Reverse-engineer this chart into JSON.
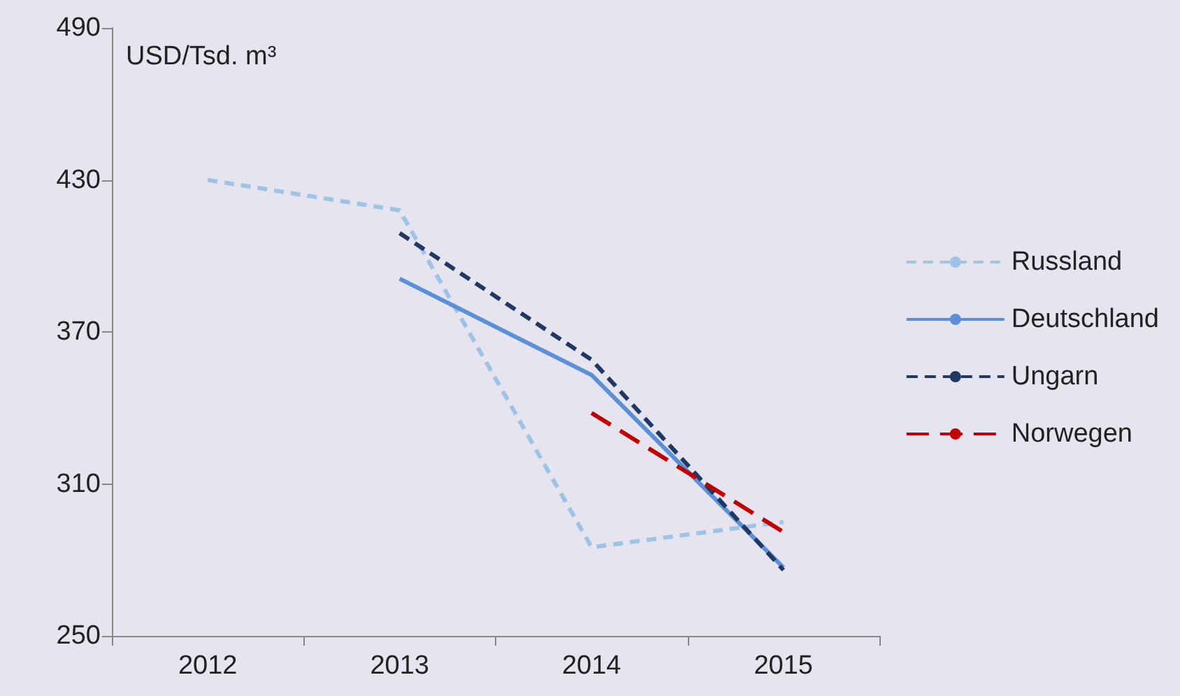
{
  "chart_data": {
    "type": "line",
    "ylabel": "USD/Tsd. m³",
    "categories": [
      "2012",
      "2013",
      "2014",
      "2015"
    ],
    "ylim": [
      250,
      490
    ],
    "yticks": [
      250,
      310,
      370,
      430,
      490
    ],
    "grid": false,
    "legend": "right",
    "marker": "none",
    "series": [
      {
        "name": "Russland",
        "color": "#9dc3e6",
        "line_style": "dashed",
        "values": [
          430,
          418,
          285,
          295
        ]
      },
      {
        "name": "Deutschland",
        "color": "#5b8fd6",
        "line_style": "solid",
        "values": [
          null,
          391,
          353,
          277
        ]
      },
      {
        "name": "Ungarn",
        "color": "#1f3864",
        "line_style": "dashed",
        "values": [
          null,
          409,
          359,
          276
        ]
      },
      {
        "name": "Norwegen",
        "color": "#c00000",
        "line_style": "dashed",
        "values": [
          null,
          null,
          338,
          291
        ]
      }
    ]
  }
}
